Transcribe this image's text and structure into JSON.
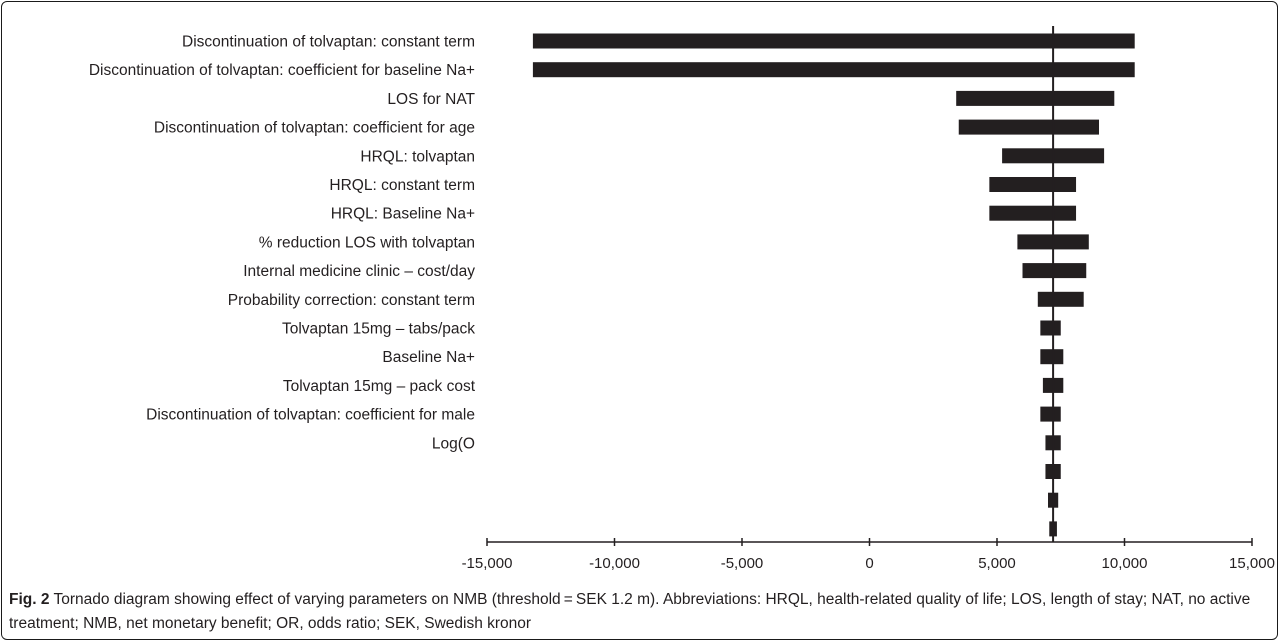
{
  "chart_data": {
    "type": "bar",
    "orientation": "horizontal",
    "chart_kind": "tornado",
    "baseline": 7200,
    "xlim": [
      -15000,
      15000
    ],
    "x_ticks": [
      "-15,000",
      "-10,000",
      "-5,000",
      "0",
      "5,000",
      "10,000",
      "15,000"
    ],
    "x_tick_values": [
      -15000,
      -10000,
      -5000,
      0,
      5000,
      10000,
      15000
    ],
    "categories": [
      "Discontinuation of tolvaptan: constant term",
      "Discontinuation of tolvaptan: coefficient for baseline Na+",
      "LOS for NAT",
      "Discontinuation of tolvaptan: coefficient for age",
      "HRQL: tolvaptan",
      "HRQL: constant term",
      "HRQL: Baseline Na+",
      "% reduction LOS with tolvaptan",
      "Internal medicine clinic – cost/day",
      "Probability correction: constant term",
      "Tolvaptan 15mg – tabs/pack",
      "Baseline Na+",
      "Tolvaptan 15mg – pack cost",
      "Discontinuation of tolvaptan: coefficient for male",
      "Log(O",
      "",
      "",
      ""
    ],
    "ranges": [
      [
        -13200,
        10400
      ],
      [
        -13200,
        10400
      ],
      [
        3400,
        9600
      ],
      [
        3500,
        9000
      ],
      [
        5200,
        9200
      ],
      [
        4700,
        8100
      ],
      [
        4700,
        8100
      ],
      [
        5800,
        8600
      ],
      [
        6000,
        8500
      ],
      [
        6600,
        8400
      ],
      [
        6700,
        7500
      ],
      [
        6700,
        7600
      ],
      [
        6800,
        7600
      ],
      [
        6700,
        7500
      ],
      [
        6900,
        7500
      ],
      [
        6900,
        7500
      ],
      [
        7000,
        7400
      ],
      [
        7050,
        7350
      ]
    ],
    "bar_color": "#231f20"
  },
  "caption": {
    "label": "Fig. 2",
    "text": " Tornado diagram showing effect of varying parameters on NMB (threshold = SEK 1.2 m). Abbreviations: HRQL, health-related quality of life; LOS, length of stay; NAT, no active treatment; NMB, net monetary benefit; OR, odds ratio; SEK, Swedish kronor"
  }
}
